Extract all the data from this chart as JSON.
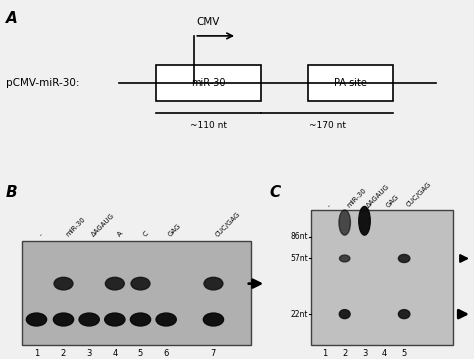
{
  "fig_bg": "#f0f0f0",
  "title_A": "A",
  "title_B": "B",
  "title_C": "C",
  "label_pcmv": "pCMV-miR-30:",
  "label_cmv": "CMV",
  "label_mir30": "miR-30",
  "label_pa": "PA site",
  "label_110nt": "~110 nt",
  "label_170nt": "~170 nt",
  "lanes_B": [
    "-",
    "miR-30",
    "ΔAGAUG",
    "A",
    "C",
    "GAG",
    "CUC/GAG"
  ],
  "lane_nums_B": [
    "1",
    "2",
    "3",
    "4",
    "5",
    "6",
    "7"
  ],
  "lanes_C": [
    "-",
    "miR-30",
    "ΔAGAUG",
    "GAG",
    "CUC/GAG"
  ],
  "lane_nums_C": [
    "1",
    "2",
    "3",
    "4",
    "5"
  ],
  "markers_C": [
    "86nt",
    "57nt",
    "22nt"
  ],
  "gel_bg_B": "#b0b0b0",
  "gel_bg_C": "#c0c0c0"
}
